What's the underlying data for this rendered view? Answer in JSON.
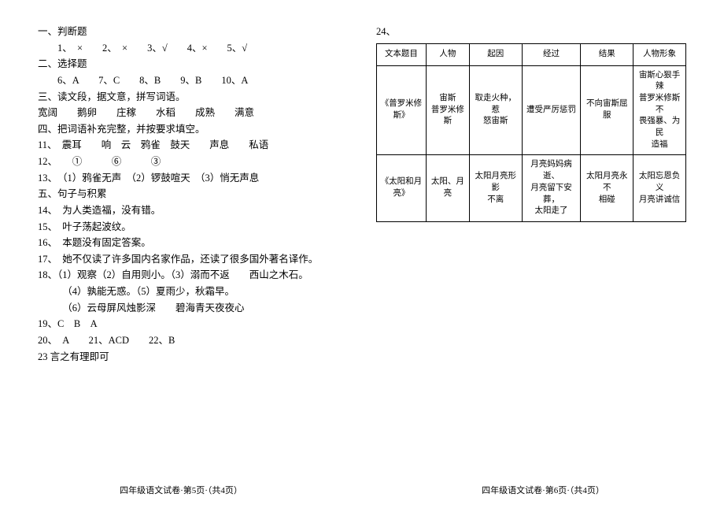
{
  "left": {
    "lines": [
      "一、判断题",
      "　　1、　×　　2、　×　　3、√　　4、×　　5、√",
      "二、选择题",
      "　　6、A　　7、C　　8、B　　9、B　　10、A",
      "三、读文段，据文意，拼写词语。",
      "宽阔　　鹅卵　　庄稼　　水稻　　成熟　　满意",
      "四、把词语补充完整，并按要求填空。",
      "11、　震耳　　响　云　鸦雀　鼓天　　声息　　私语",
      "12、　　①　　　⑥　　　③",
      "13、　（1）鸦雀无声　（2）锣鼓喧天　（3）悄无声息",
      "五、句子与积累",
      "14、　为人类造福，没有错。",
      "15、　叶子荡起波纹。",
      "16、　本题没有固定答案。",
      "17、　她不仅读了许多国内名家作品，还读了很多国外著名译作。",
      "18、（1）观察（2）自用则小。（3）溺而不返　　西山之木石。",
      "　　　（4）孰能无惑。（5）夏雨少，秋霜早。",
      "　　　（6）云母屏风烛影深　　碧海青天夜夜心",
      "19、C　B　A",
      "20、　A　　21、ACD　　22、B",
      "23 言之有理即可"
    ],
    "footer": "四年级语文试卷·第5页·（共4页）"
  },
  "right": {
    "label24": "24、",
    "headers": [
      "文本题目",
      "人物",
      "起因",
      "经过",
      "结果",
      "人物形象"
    ],
    "rows": [
      [
        "《普罗米修斯》",
        "宙斯\n普罗米修斯",
        "取走火种，惹\n怒宙斯",
        "遭受严厉惩罚",
        "不向宙斯屈服",
        "宙斯心狠手辣\n普罗米修斯不\n畏强暴、为民\n造福"
      ],
      [
        "《太阳和月亮》",
        "太阳、月亮",
        "太阳月亮形影\n不离",
        "月亮妈妈病逝、\n月亮留下安葬，\n太阳走了",
        "太阳月亮永不\n相碰",
        "太阳忘恩负义\n月亮讲诚信"
      ]
    ],
    "footer": "四年级语文试卷·第6页·（共4页）"
  },
  "colors": {
    "text": "#000000",
    "background": "#ffffff",
    "border": "#000000"
  },
  "fonts": {
    "body_size": 12.5,
    "table_size": 10.5,
    "footer_size": 11
  },
  "column_widths": [
    "16%",
    "14%",
    "17%",
    "19%",
    "17%",
    "17%"
  ]
}
